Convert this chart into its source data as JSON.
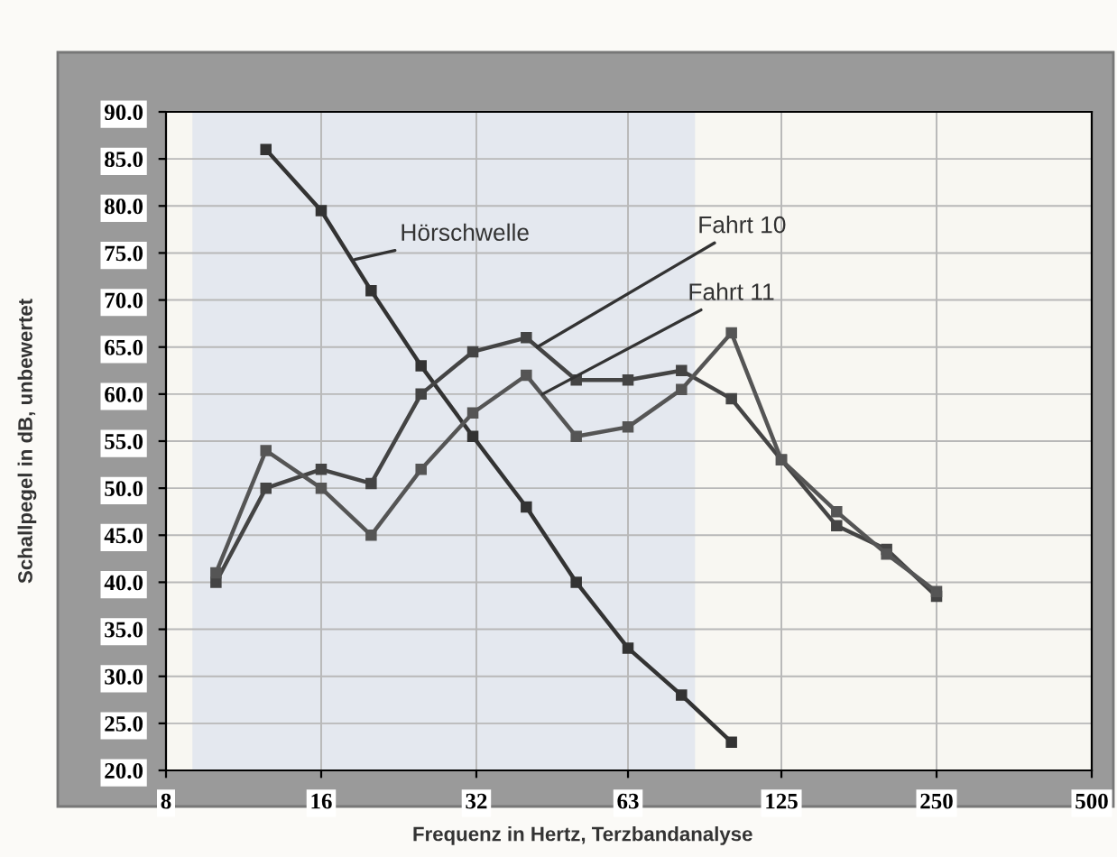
{
  "chart_data": {
    "type": "line",
    "xlabel": "Frequenz in Hertz, Terzbandanalyse",
    "ylabel": "Schallpegel in dB, unbewertet",
    "log": "x",
    "xlim": [
      8,
      500
    ],
    "xticks": [
      8,
      16,
      32,
      63,
      125,
      250,
      500
    ],
    "ylim": [
      20,
      90
    ],
    "yticks": [
      {
        "value": 20,
        "label": "20.0"
      },
      {
        "value": 25,
        "label": "25.0"
      },
      {
        "value": 30,
        "label": "30.0"
      },
      {
        "value": 35,
        "label": "35.0"
      },
      {
        "value": 40,
        "label": "40.0"
      },
      {
        "value": 45,
        "label": "45.0"
      },
      {
        "value": 50,
        "label": "50.0"
      },
      {
        "value": 55,
        "label": "55.0"
      },
      {
        "value": 60,
        "label": "60.0"
      },
      {
        "value": 65,
        "label": "65.0"
      },
      {
        "value": 70,
        "label": "70.0"
      },
      {
        "value": 75,
        "label": "75.0"
      },
      {
        "value": 80,
        "label": "80.0"
      },
      {
        "value": 85,
        "label": "85.0"
      },
      {
        "value": 90,
        "label": "90.0"
      }
    ],
    "series": [
      {
        "color": "#333333",
        "x": [
          12.5,
          16,
          20,
          25,
          31.5,
          40,
          50,
          63,
          80,
          100
        ],
        "values": [
          86,
          79.5,
          71,
          63,
          55.5,
          48,
          40,
          33,
          28,
          23
        ]
      },
      {
        "color": "#444444",
        "x": [
          10,
          12.5,
          16,
          20,
          25,
          31.5,
          40,
          50,
          63,
          80,
          100,
          125,
          160,
          200,
          250
        ],
        "values": [
          40,
          50,
          52,
          50.5,
          60,
          64.5,
          66,
          61.5,
          61.5,
          62.5,
          59.5,
          53,
          46,
          43.5,
          38.5
        ]
      },
      {
        "color": "#555555",
        "x": [
          10,
          12.5,
          16,
          20,
          25,
          31.5,
          40,
          50,
          63,
          80,
          100,
          125,
          160,
          200,
          250
        ],
        "values": [
          41,
          54,
          50,
          45,
          52,
          58,
          62,
          55.5,
          56.5,
          60.5,
          66.5,
          53,
          47.5,
          43,
          39
        ]
      }
    ],
    "annotations": [
      {
        "text": "Hörschwelle",
        "x": 18.6,
        "y": 74.3
      },
      {
        "text": "Fahrt 10",
        "x": 42,
        "y": 65
      },
      {
        "text": "Fahrt 11",
        "x": 43,
        "y": 60
      }
    ],
    "bands": [
      {
        "axis": "x",
        "from": 9,
        "to": 85,
        "color": "#e4e8ef"
      }
    ],
    "grid": true,
    "marker": "square",
    "line_style": "solid"
  }
}
